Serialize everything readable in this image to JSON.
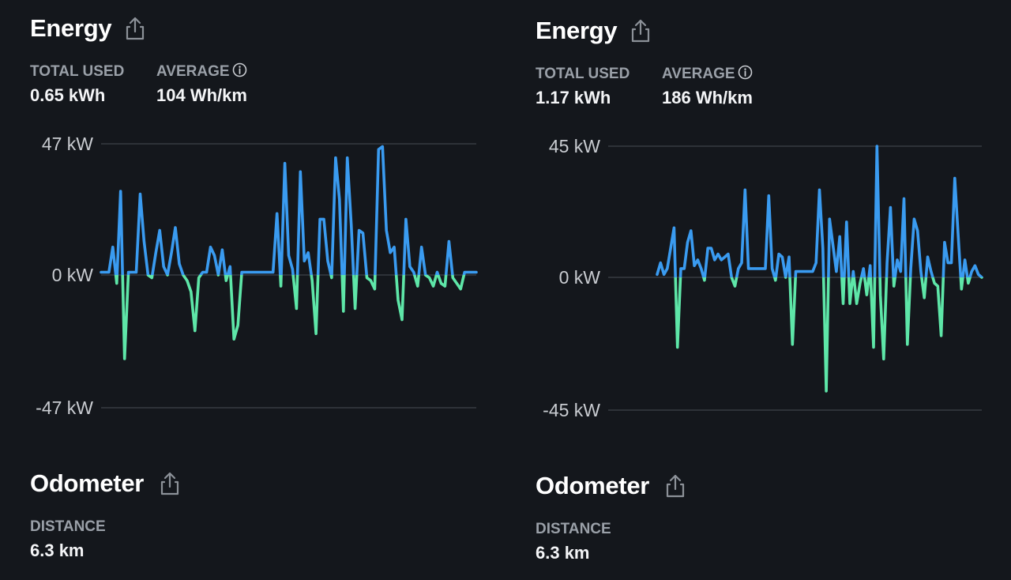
{
  "panels": [
    {
      "energy": {
        "title": "Energy",
        "total_used_label": "TOTAL USED",
        "total_used_value": "0.65 kWh",
        "average_label": "AVERAGE",
        "average_value": "104 Wh/km",
        "share_icon": "share-icon",
        "info_icon": "info-icon"
      },
      "odometer": {
        "title": "Odometer",
        "distance_label": "DISTANCE",
        "distance_value": "6.3 km"
      },
      "chart_data": {
        "type": "line",
        "ylabel_ticks": [
          "47 kW",
          "0 kW",
          "-47 kW"
        ],
        "ylim": [
          -47,
          47
        ],
        "positive_color": "#3a9bf0",
        "negative_color": "#5ee6a8",
        "series": [
          {
            "values": [
              1,
              1,
              1,
              10,
              -3,
              30,
              -30,
              1,
              1,
              1,
              29,
              12,
              0,
              -1,
              8,
              16,
              3,
              0,
              8,
              17,
              4,
              0,
              -2,
              -6,
              -20,
              -1,
              1,
              1,
              10,
              7,
              0,
              9,
              -2,
              3,
              -23,
              -18,
              1,
              1,
              1,
              1,
              1,
              1,
              1,
              1,
              1,
              22,
              -4,
              40,
              7,
              2,
              -12,
              37,
              5,
              8,
              -2,
              -21,
              20,
              20,
              5,
              -1,
              42,
              27,
              -13,
              42,
              18,
              -12,
              16,
              15,
              -1,
              -2,
              -5,
              45,
              46,
              16,
              8,
              10,
              -9,
              -16,
              20,
              3,
              1,
              -4,
              10,
              0,
              -1,
              -4,
              1,
              -3,
              -4,
              12,
              -1,
              -3,
              -5,
              1,
              1,
              1,
              1
            ]
          }
        ]
      }
    },
    {
      "energy": {
        "title": "Energy",
        "total_used_label": "TOTAL USED",
        "total_used_value": "1.17 kWh",
        "average_label": "AVERAGE",
        "average_value": "186 Wh/km",
        "share_icon": "share-icon",
        "info_icon": "info-icon"
      },
      "odometer": {
        "title": "Odometer",
        "distance_label": "DISTANCE",
        "distance_value": "6.3 km"
      },
      "chart_data": {
        "type": "line",
        "ylabel_ticks": [
          "45 kW",
          "0 kW",
          "-45 kW"
        ],
        "ylim": [
          -45,
          45
        ],
        "positive_color": "#3a9bf0",
        "negative_color": "#5ee6a8",
        "series": [
          {
            "values": [
              1,
              5,
              1,
              3,
              10,
              17,
              -24,
              3,
              3,
              12,
              16,
              4,
              6,
              3,
              -1,
              10,
              10,
              6,
              8,
              6,
              7,
              8,
              0,
              -3,
              3,
              5,
              30,
              3,
              3,
              3,
              3,
              3,
              3,
              28,
              3,
              -1,
              8,
              7,
              0,
              7,
              -23,
              2,
              2,
              2,
              2,
              2,
              2,
              5,
              30,
              10,
              -39,
              20,
              11,
              2,
              14,
              -9,
              19,
              -9,
              2,
              -9,
              -2,
              3,
              -6,
              4,
              -24,
              45,
              -6,
              -28,
              5,
              24,
              -3,
              6,
              2,
              27,
              -23,
              3,
              20,
              16,
              2,
              -7,
              7,
              2,
              -2,
              -3,
              -20,
              12,
              5,
              5,
              34,
              15,
              -4,
              6,
              -2,
              2,
              4,
              1,
              0
            ]
          }
        ]
      }
    }
  ]
}
